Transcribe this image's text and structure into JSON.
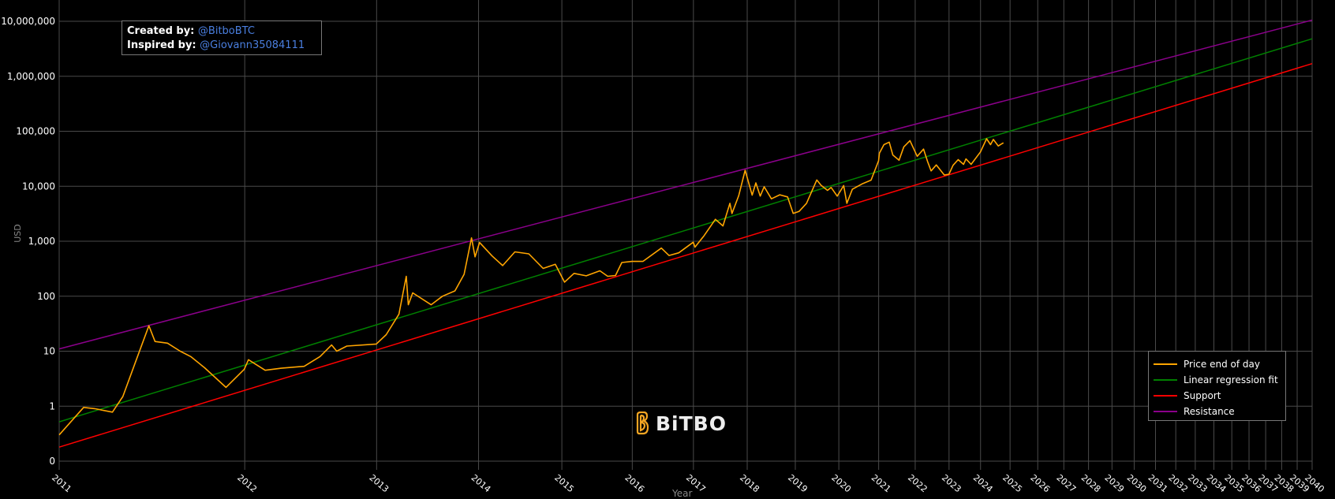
{
  "chart_data": {
    "type": "line",
    "title": "",
    "xlabel": "Year",
    "ylabel": "USD",
    "x_scale": "log (time since genesis)",
    "y_scale": "log",
    "grid": true,
    "legend_position": "bottom-right",
    "x_ticks": [
      "2011",
      "2012",
      "2013",
      "2014",
      "2015",
      "2016",
      "2017",
      "2018",
      "2019",
      "2020",
      "2021",
      "2022",
      "2023",
      "2024",
      "2025",
      "2026",
      "2027",
      "2028",
      "2029",
      "2030",
      "2031",
      "2032",
      "2033",
      "2034",
      "2035",
      "2036",
      "2037",
      "2038",
      "2039",
      "2040"
    ],
    "y_ticks": [
      {
        "value": 0.1,
        "label": "0"
      },
      {
        "value": 1,
        "label": "1"
      },
      {
        "value": 10,
        "label": "10"
      },
      {
        "value": 100,
        "label": "100"
      },
      {
        "value": 1000,
        "label": "1,000"
      },
      {
        "value": 10000,
        "label": "10,000"
      },
      {
        "value": 100000,
        "label": "100,000"
      },
      {
        "value": 1000000,
        "label": "1,000,000"
      },
      {
        "value": 10000000,
        "label": "10,000,000"
      }
    ],
    "series": [
      {
        "name": "Price end of day",
        "color": "#ffa500",
        "points": [
          [
            "2011-01-01",
            0.3
          ],
          [
            "2011-02-10",
            0.95
          ],
          [
            "2011-03-01",
            0.9
          ],
          [
            "2011-04-01",
            0.78
          ],
          [
            "2011-04-20",
            1.5
          ],
          [
            "2011-05-15",
            7
          ],
          [
            "2011-06-08",
            29
          ],
          [
            "2011-06-20",
            15
          ],
          [
            "2011-07-15",
            14
          ],
          [
            "2011-08-10",
            10
          ],
          [
            "2011-09-01",
            8
          ],
          [
            "2011-10-01",
            5
          ],
          [
            "2011-11-18",
            2.2
          ],
          [
            "2011-12-31",
            4.7
          ],
          [
            "2012-01-10",
            7
          ],
          [
            "2012-02-20",
            4.5
          ],
          [
            "2012-04-01",
            4.9
          ],
          [
            "2012-06-01",
            5.3
          ],
          [
            "2012-07-15",
            8
          ],
          [
            "2012-08-17",
            13
          ],
          [
            "2012-09-01",
            10
          ],
          [
            "2012-10-01",
            12.4
          ],
          [
            "2012-12-31",
            13.5
          ],
          [
            "2013-02-01",
            20
          ],
          [
            "2013-03-15",
            47
          ],
          [
            "2013-04-09",
            230
          ],
          [
            "2013-04-16",
            70
          ],
          [
            "2013-05-01",
            115
          ],
          [
            "2013-07-05",
            70
          ],
          [
            "2013-08-15",
            100
          ],
          [
            "2013-10-01",
            125
          ],
          [
            "2013-11-05",
            250
          ],
          [
            "2013-12-04",
            1150
          ],
          [
            "2013-12-18",
            520
          ],
          [
            "2014-01-05",
            950
          ],
          [
            "2014-02-25",
            540
          ],
          [
            "2014-04-10",
            360
          ],
          [
            "2014-06-01",
            640
          ],
          [
            "2014-08-01",
            590
          ],
          [
            "2014-10-05",
            320
          ],
          [
            "2014-12-01",
            380
          ],
          [
            "2015-01-14",
            180
          ],
          [
            "2015-03-01",
            260
          ],
          [
            "2015-05-01",
            235
          ],
          [
            "2015-07-10",
            290
          ],
          [
            "2015-08-20",
            230
          ],
          [
            "2015-10-01",
            238
          ],
          [
            "2015-11-04",
            410
          ],
          [
            "2015-12-31",
            430
          ],
          [
            "2016-03-01",
            430
          ],
          [
            "2016-06-17",
            750
          ],
          [
            "2016-08-02",
            550
          ],
          [
            "2016-10-01",
            615
          ],
          [
            "2016-12-31",
            960
          ],
          [
            "2017-01-11",
            780
          ],
          [
            "2017-03-10",
            1250
          ],
          [
            "2017-05-25",
            2500
          ],
          [
            "2017-07-15",
            1900
          ],
          [
            "2017-09-01",
            4900
          ],
          [
            "2017-09-15",
            3200
          ],
          [
            "2017-11-01",
            6700
          ],
          [
            "2017-12-17",
            19500
          ],
          [
            "2018-02-06",
            6900
          ],
          [
            "2018-03-05",
            11500
          ],
          [
            "2018-04-06",
            6600
          ],
          [
            "2018-05-05",
            9800
          ],
          [
            "2018-06-29",
            5900
          ],
          [
            "2018-09-01",
            7000
          ],
          [
            "2018-11-01",
            6400
          ],
          [
            "2018-12-15",
            3200
          ],
          [
            "2019-02-01",
            3500
          ],
          [
            "2019-04-02",
            4900
          ],
          [
            "2019-06-26",
            13000
          ],
          [
            "2019-08-01",
            10400
          ],
          [
            "2019-09-25",
            8400
          ],
          [
            "2019-10-26",
            9500
          ],
          [
            "2019-12-18",
            6600
          ],
          [
            "2020-02-13",
            10300
          ],
          [
            "2020-03-12",
            4900
          ],
          [
            "2020-05-01",
            8800
          ],
          [
            "2020-07-27",
            11000
          ],
          [
            "2020-10-21",
            12900
          ],
          [
            "2020-12-31",
            29000
          ],
          [
            "2021-01-08",
            40000
          ],
          [
            "2021-02-21",
            57000
          ],
          [
            "2021-04-13",
            63500
          ],
          [
            "2021-05-19",
            37000
          ],
          [
            "2021-07-20",
            29800
          ],
          [
            "2021-09-06",
            52000
          ],
          [
            "2021-11-08",
            67500
          ],
          [
            "2022-01-22",
            35000
          ],
          [
            "2022-03-29",
            47500
          ],
          [
            "2022-05-12",
            28000
          ],
          [
            "2022-06-18",
            19000
          ],
          [
            "2022-08-14",
            24400
          ],
          [
            "2022-11-09",
            16000
          ],
          [
            "2022-12-31",
            16500
          ],
          [
            "2023-02-15",
            24000
          ],
          [
            "2023-04-14",
            30500
          ],
          [
            "2023-06-15",
            25000
          ],
          [
            "2023-07-13",
            31400
          ],
          [
            "2023-09-11",
            25000
          ],
          [
            "2023-12-31",
            42000
          ],
          [
            "2024-03-14",
            73000
          ],
          [
            "2024-05-01",
            57000
          ],
          [
            "2024-06-05",
            71000
          ],
          [
            "2024-08-05",
            54000
          ],
          [
            "2024-10-01",
            61000
          ],
          [
            "2024-10-10",
            60500
          ]
        ]
      },
      {
        "name": "Linear regression fit",
        "color": "#008000",
        "points": [
          [
            "2011-01-01",
            0.52
          ],
          [
            "2040-01-01",
            4800000
          ]
        ]
      },
      {
        "name": "Support",
        "color": "#ff0000",
        "points": [
          [
            "2011-01-01",
            0.18
          ],
          [
            "2040-01-01",
            1700000
          ]
        ]
      },
      {
        "name": "Resistance",
        "color": "#8b008b",
        "points": [
          [
            "2011-01-01",
            11
          ],
          [
            "2040-01-01",
            10500000
          ]
        ]
      }
    ]
  },
  "credits": {
    "created_label": "Created by:",
    "created_handle": "@BitboBTC",
    "inspired_label": "Inspired by:",
    "inspired_handle": "@Giovann35084111"
  },
  "logo": {
    "text": "BiTBO",
    "color": "#f5a623"
  },
  "colors": {
    "background": "#000000",
    "grid": "#4a4a4a",
    "text": "#ffffff",
    "link": "#4a7fe0"
  }
}
